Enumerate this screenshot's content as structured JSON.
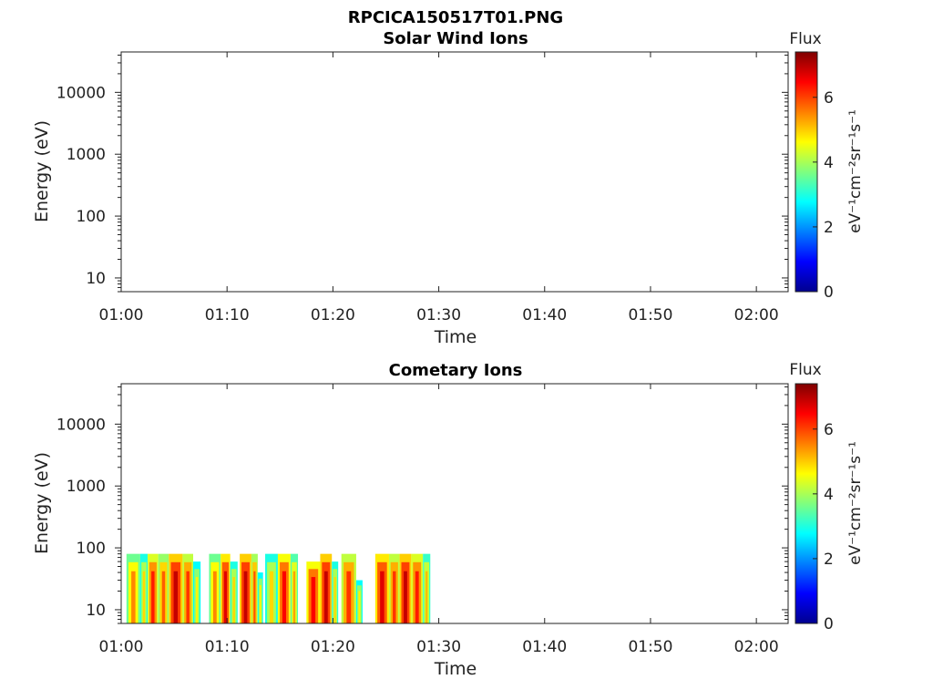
{
  "figure_title": "RPCICA150517T01.PNG",
  "colorscale": [
    "#00008f",
    "#0000ff",
    "#007fff",
    "#00ffff",
    "#7fff7f",
    "#ffff00",
    "#ff7f00",
    "#ff0000",
    "#7f0000"
  ],
  "chart_data": [
    {
      "type": "heatmap",
      "title": "Solar Wind Ions",
      "xlabel": "Time",
      "ylabel": "Energy (eV)",
      "x_ticks": [
        "01:00",
        "01:10",
        "01:20",
        "01:30",
        "01:40",
        "01:50",
        "02:00"
      ],
      "x_range_minutes": [
        0,
        63
      ],
      "y_scale": "log",
      "y_ticks": [
        "10",
        "100",
        "1000",
        "10000"
      ],
      "y_range": [
        6,
        45000
      ],
      "colorbar": {
        "label": "Flux",
        "unit_label": "eV⁻¹cm⁻²sr⁻¹s⁻¹",
        "ticks": [
          "0",
          "2",
          "4",
          "6"
        ],
        "range": [
          0,
          7.4
        ]
      },
      "data_blocks": []
    },
    {
      "type": "heatmap",
      "title": "Cometary Ions",
      "xlabel": "Time",
      "ylabel": "Energy (eV)",
      "x_ticks": [
        "01:00",
        "01:10",
        "01:20",
        "01:30",
        "01:40",
        "01:50",
        "02:00"
      ],
      "x_range_minutes": [
        0,
        63
      ],
      "y_scale": "log",
      "y_ticks": [
        "10",
        "100",
        "1000",
        "10000"
      ],
      "y_range": [
        6,
        45000
      ],
      "colorbar": {
        "label": "Flux",
        "unit_label": "eV⁻¹cm⁻²sr⁻¹s⁻¹",
        "ticks": [
          "0",
          "2",
          "4",
          "6"
        ],
        "range": [
          0,
          7.4
        ]
      },
      "data_blocks": [
        {
          "t0": 0.5,
          "t1": 1.8,
          "emax": 80,
          "flux": 5.2
        },
        {
          "t0": 1.8,
          "t1": 2.5,
          "emax": 80,
          "flux": 4.6
        },
        {
          "t0": 2.5,
          "t1": 3.5,
          "emax": 80,
          "flux": 6.0
        },
        {
          "t0": 3.5,
          "t1": 4.5,
          "emax": 80,
          "flux": 5.5
        },
        {
          "t0": 4.5,
          "t1": 5.8,
          "emax": 80,
          "flux": 6.6
        },
        {
          "t0": 5.8,
          "t1": 6.8,
          "emax": 80,
          "flux": 5.8
        },
        {
          "t0": 6.8,
          "t1": 7.5,
          "emax": 60,
          "flux": 4.4
        },
        {
          "t0": 8.3,
          "t1": 9.4,
          "emax": 80,
          "flux": 5.2
        },
        {
          "t0": 9.4,
          "t1": 10.3,
          "emax": 80,
          "flux": 6.4
        },
        {
          "t0": 10.3,
          "t1": 11.0,
          "emax": 60,
          "flux": 4.6
        },
        {
          "t0": 11.2,
          "t1": 12.3,
          "emax": 80,
          "flux": 6.6
        },
        {
          "t0": 12.3,
          "t1": 12.9,
          "emax": 80,
          "flux": 5.6
        },
        {
          "t0": 12.9,
          "t1": 13.4,
          "emax": 40,
          "flux": 4.4
        },
        {
          "t0": 13.6,
          "t1": 14.8,
          "emax": 80,
          "flux": 4.6
        },
        {
          "t0": 14.8,
          "t1": 16.0,
          "emax": 80,
          "flux": 6.2
        },
        {
          "t0": 16.0,
          "t1": 16.7,
          "emax": 80,
          "flux": 5.0
        },
        {
          "t0": 17.5,
          "t1": 18.8,
          "emax": 60,
          "flux": 6.2
        },
        {
          "t0": 18.8,
          "t1": 19.9,
          "emax": 80,
          "flux": 6.6
        },
        {
          "t0": 19.9,
          "t1": 20.5,
          "emax": 60,
          "flux": 4.6
        },
        {
          "t0": 20.8,
          "t1": 22.2,
          "emax": 80,
          "flux": 5.8
        },
        {
          "t0": 22.2,
          "t1": 22.8,
          "emax": 30,
          "flux": 4.4
        },
        {
          "t0": 24.0,
          "t1": 25.3,
          "emax": 80,
          "flux": 6.4
        },
        {
          "t0": 25.3,
          "t1": 26.3,
          "emax": 80,
          "flux": 5.8
        },
        {
          "t0": 26.3,
          "t1": 27.4,
          "emax": 80,
          "flux": 6.6
        },
        {
          "t0": 27.4,
          "t1": 28.5,
          "emax": 80,
          "flux": 6.0
        },
        {
          "t0": 28.5,
          "t1": 29.2,
          "emax": 80,
          "flux": 4.8
        }
      ]
    }
  ]
}
